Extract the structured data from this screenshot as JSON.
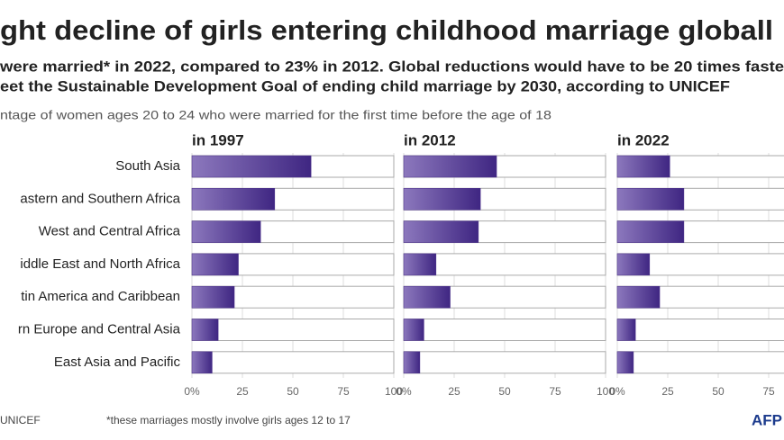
{
  "chart_data": {
    "type": "bar",
    "title": "ght decline of girls entering childhood marriage globall",
    "subtitle": [
      "were married* in 2022, compared to 23% in 2012. Global reductions would have to be 20 times faste",
      "eet the Sustainable Development Goal of ending child marriage by 2030, according to UNICEF"
    ],
    "axis_label": "ntage of women ages 20 to 24 who were married for the first time before the age of 18",
    "categories": [
      "South Asia",
      "astern and Southern Africa",
      "West and Central Africa",
      "iddle East and North Africa",
      "tin America and Caribbean",
      "rn Europe and Central Asia",
      "East Asia and Pacific"
    ],
    "series": [
      {
        "name": "in 1997",
        "color": "#4a2f8a",
        "values": [
          59,
          41,
          34,
          23,
          21,
          13,
          10
        ]
      },
      {
        "name": "in 2012",
        "color": "#4a2f8a",
        "values": [
          46,
          38,
          37,
          16,
          23,
          10,
          8
        ]
      },
      {
        "name": "in 2022",
        "color": "#4a2f8a",
        "values": [
          26,
          33,
          33,
          16,
          21,
          9,
          8
        ]
      }
    ],
    "xlim": [
      0,
      100
    ],
    "xticks": [
      {
        "value": 0,
        "label": "0%"
      },
      25,
      50,
      75,
      100
    ],
    "source": "UNICEF",
    "footnote": "*these marriages mostly involve girls ages  12 to 17",
    "logo": "AFP"
  }
}
